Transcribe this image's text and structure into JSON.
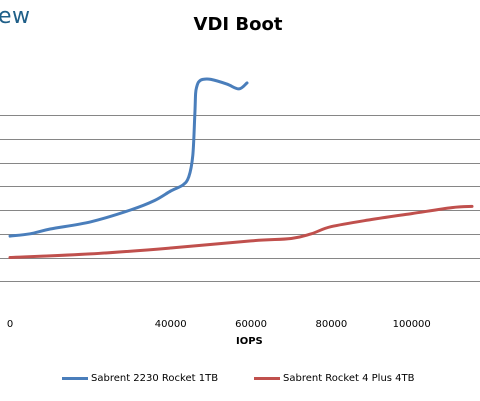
{
  "logo": {
    "text": "ew"
  },
  "colors": {
    "series_1": "#4a7ebb",
    "series_2": "#c0504d",
    "grid": "#868686"
  },
  "chart_data": {
    "type": "line",
    "title": "VDI Boot",
    "xlabel": "IOPS",
    "ylabel": "",
    "xlim": [
      -2500,
      117000
    ],
    "ylim": [
      0,
      12
    ],
    "x_ticks": [
      0,
      40000,
      60000,
      80000,
      100000
    ],
    "x_tick_labels": [
      "0",
      "40000",
      "60000",
      "80000",
      "100000"
    ],
    "y_gridlines": [
      1,
      2,
      3,
      4,
      5,
      6,
      7,
      8
    ],
    "grid": true,
    "legend_position": "bottom",
    "series": [
      {
        "name": "Sabrent 2230 Rocket 1TB",
        "x": [
          0,
          5000,
          10000,
          20000,
          30000,
          36000,
          40000,
          43000,
          44500,
          45500,
          46000,
          46200,
          46500,
          47000,
          48000,
          50000,
          54000,
          57000,
          59000
        ],
        "y": [
          2.9,
          3.0,
          3.2,
          3.5,
          4.0,
          4.4,
          4.8,
          5.05,
          5.4,
          6.3,
          8.0,
          8.9,
          9.2,
          9.4,
          9.5,
          9.5,
          9.3,
          9.1,
          9.35
        ]
      },
      {
        "name": "Sabrent Rocket 4 Plus 4TB",
        "x": [
          0,
          20000,
          40000,
          60000,
          70000,
          75000,
          80000,
          90000,
          100000,
          110000,
          115000
        ],
        "y": [
          2.0,
          2.15,
          2.4,
          2.7,
          2.8,
          3.0,
          3.3,
          3.6,
          3.85,
          4.1,
          4.15
        ]
      }
    ]
  }
}
